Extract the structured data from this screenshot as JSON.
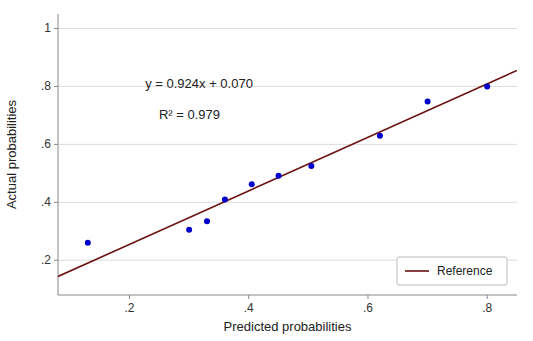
{
  "chart_data": {
    "type": "scatter",
    "xlabel": "Predicted probabilities",
    "ylabel": "Actual probabilities",
    "annotations": [
      "y = 0.924x + 0.070",
      "R² = 0.979"
    ],
    "xlim": [
      0.08,
      0.85
    ],
    "ylim": [
      0.08,
      1.05
    ],
    "xticks": [
      {
        "value": 0.2,
        "label": ".2"
      },
      {
        "value": 0.4,
        "label": ".4"
      },
      {
        "value": 0.6,
        "label": ".6"
      },
      {
        "value": 0.8,
        "label": ".8"
      }
    ],
    "yticks": [
      {
        "value": 0.2,
        "label": ".2"
      },
      {
        "value": 0.4,
        "label": ".4"
      },
      {
        "value": 0.6,
        "label": ".6"
      },
      {
        "value": 0.8,
        "label": ".8"
      },
      1
    ],
    "grid": "y",
    "legend": "lower right",
    "series": [
      {
        "name": "Reference",
        "type": "line",
        "color": "#6B1010",
        "x": [
          0.08,
          0.85
        ],
        "values": [
          0.14392,
          0.8554
        ]
      },
      {
        "type": "scatter",
        "color": "#0000CC",
        "x": [
          0.13,
          0.3,
          0.33,
          0.36,
          0.405,
          0.45,
          0.505,
          0.62,
          0.7,
          0.8
        ],
        "values": [
          0.26,
          0.305,
          0.335,
          0.41,
          0.462,
          0.492,
          0.525,
          0.63,
          0.748,
          0.8
        ]
      }
    ]
  }
}
